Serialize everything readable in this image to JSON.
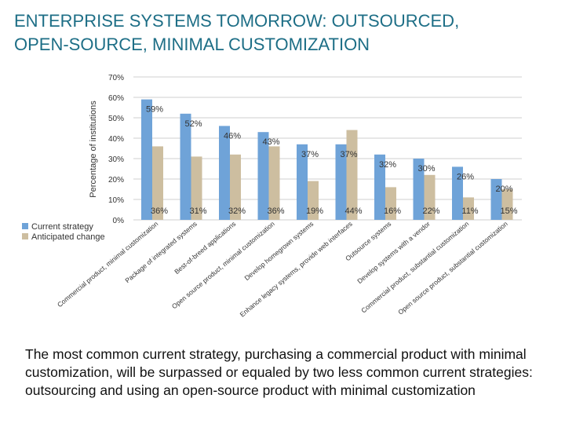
{
  "slide": {
    "title_line1": "ENTERPRISE SYSTEMS TOMORROW: OUTSOURCED,",
    "title_line2": "OPEN-SOURCE, MINIMAL CUSTOMIZATION",
    "caption": "The most common current strategy, purchasing a commercial product with minimal customization, will be surpassed or equaled by two less common current strategies:  outsourcing and using an open-source product with minimal customization"
  },
  "colors": {
    "title": "#1d6e86",
    "current": "#6fa3d8",
    "anticipated": "#cdbea0",
    "grid": "#cfcfcf",
    "text": "#333333"
  },
  "chart_data": {
    "type": "bar",
    "ylabel": "Percentage of institutions",
    "ylim": [
      0,
      70
    ],
    "yticks": [
      "0%",
      "10%",
      "20%",
      "30%",
      "40%",
      "50%",
      "60%",
      "70%"
    ],
    "ytick_values": [
      0,
      10,
      20,
      30,
      40,
      50,
      60,
      70
    ],
    "grid": true,
    "legend_placement": "bottom-left",
    "categories": [
      "Commercial product, minimal customization",
      "Package of integrated systems",
      "Best-of-breed applications",
      "Open source product, minimal customization",
      "Develop homegrown systems",
      "Enhance legacy systems, provide web interfaces",
      "Outsource systems",
      "Develop systems with a vendor",
      "Commercial product, substantial customization",
      "Open source product, substantial customization"
    ],
    "series": [
      {
        "name": "Current strategy",
        "values": [
          59,
          52,
          46,
          43,
          37,
          37,
          32,
          30,
          26,
          20
        ],
        "labels": [
          "59%",
          "52%",
          "46%",
          "43%",
          "37%",
          "37%",
          "32%",
          "30%",
          "26%",
          "20%"
        ]
      },
      {
        "name": "Anticipated change",
        "values": [
          36,
          31,
          32,
          36,
          19,
          44,
          16,
          22,
          11,
          15
        ],
        "labels": [
          "36%",
          "31%",
          "32%",
          "36%",
          "19%",
          "44%",
          "16%",
          "22%",
          "11%",
          "15%"
        ]
      }
    ]
  }
}
